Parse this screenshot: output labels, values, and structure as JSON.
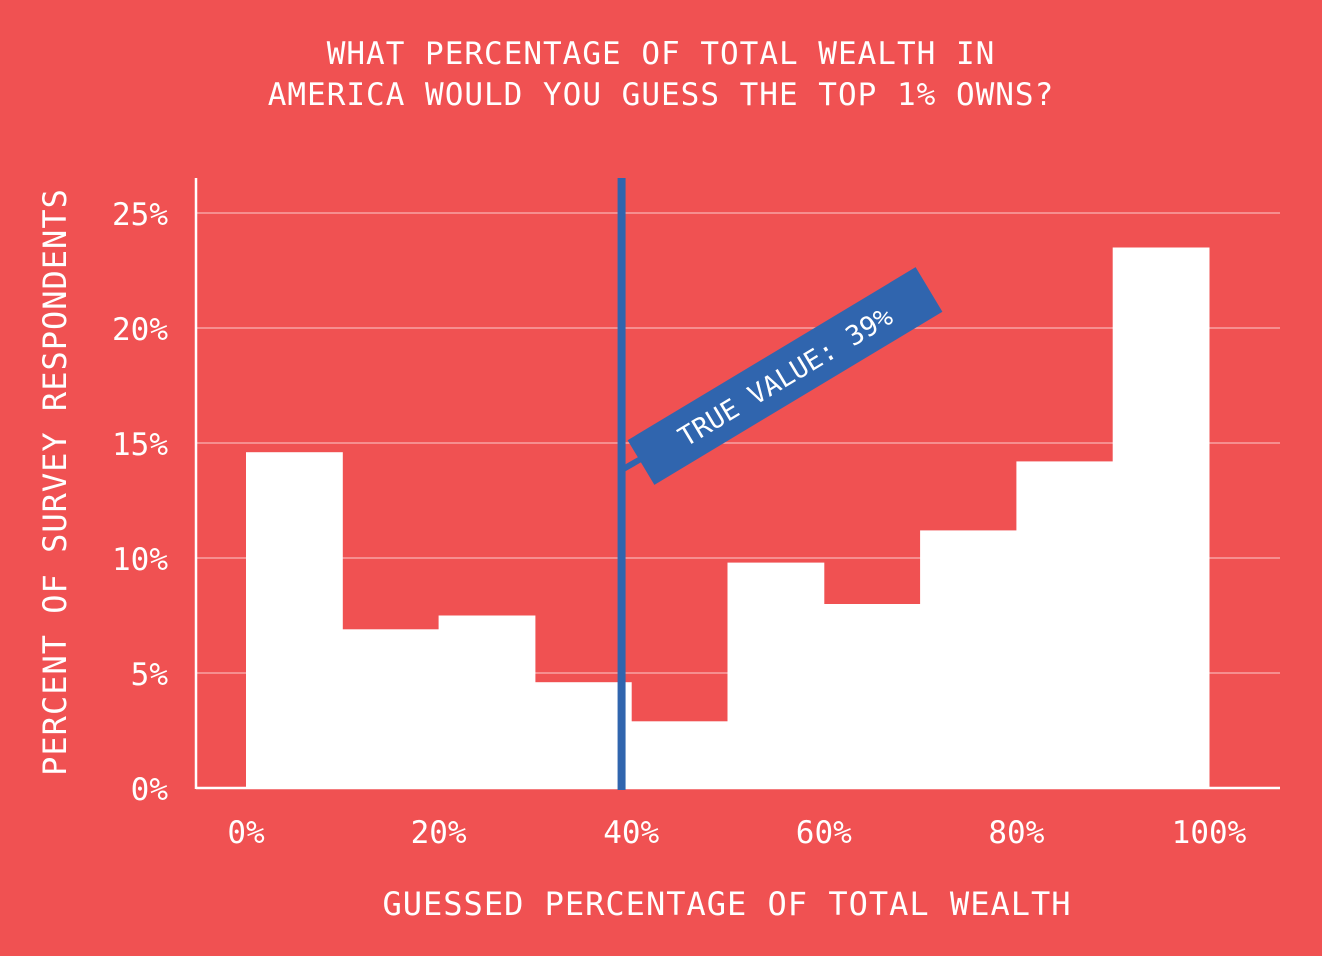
{
  "chart_data": {
    "type": "bar",
    "title_lines": [
      "WHAT PERCENTAGE OF TOTAL WEALTH IN",
      "AMERICA WOULD YOU GUESS THE TOP 1% OWNS?"
    ],
    "xlabel": "GUESSED PERCENTAGE OF TOTAL WEALTH",
    "ylabel": "PERCENT OF SURVEY RESPONDENTS",
    "bins": [
      [
        0,
        10
      ],
      [
        10,
        20
      ],
      [
        20,
        30
      ],
      [
        30,
        40
      ],
      [
        40,
        50
      ],
      [
        50,
        60
      ],
      [
        60,
        70
      ],
      [
        70,
        80
      ],
      [
        80,
        90
      ],
      [
        90,
        100
      ]
    ],
    "values": [
      14.6,
      6.9,
      7.5,
      4.6,
      2.9,
      9.8,
      8.0,
      11.2,
      14.2,
      23.5
    ],
    "xlim": [
      -5,
      107.5
    ],
    "ylim": [
      0,
      26.5
    ],
    "xticks": [
      0,
      20,
      40,
      60,
      80,
      100
    ],
    "xtick_labels": [
      "0%",
      "20%",
      "40%",
      "60%",
      "80%",
      "100%"
    ],
    "yticks": [
      0,
      5,
      10,
      15,
      20,
      25
    ],
    "ytick_labels": [
      "0%",
      "5%",
      "10%",
      "15%",
      "20%",
      "25%"
    ],
    "grid": "horizontal",
    "annotation": {
      "x": 39,
      "label": "TRUE VALUE: 39%"
    },
    "colors": {
      "background": "#F05152",
      "bars": "#FFFFFF",
      "marker": "#3065AE",
      "grid": "#F8A3A3"
    }
  }
}
